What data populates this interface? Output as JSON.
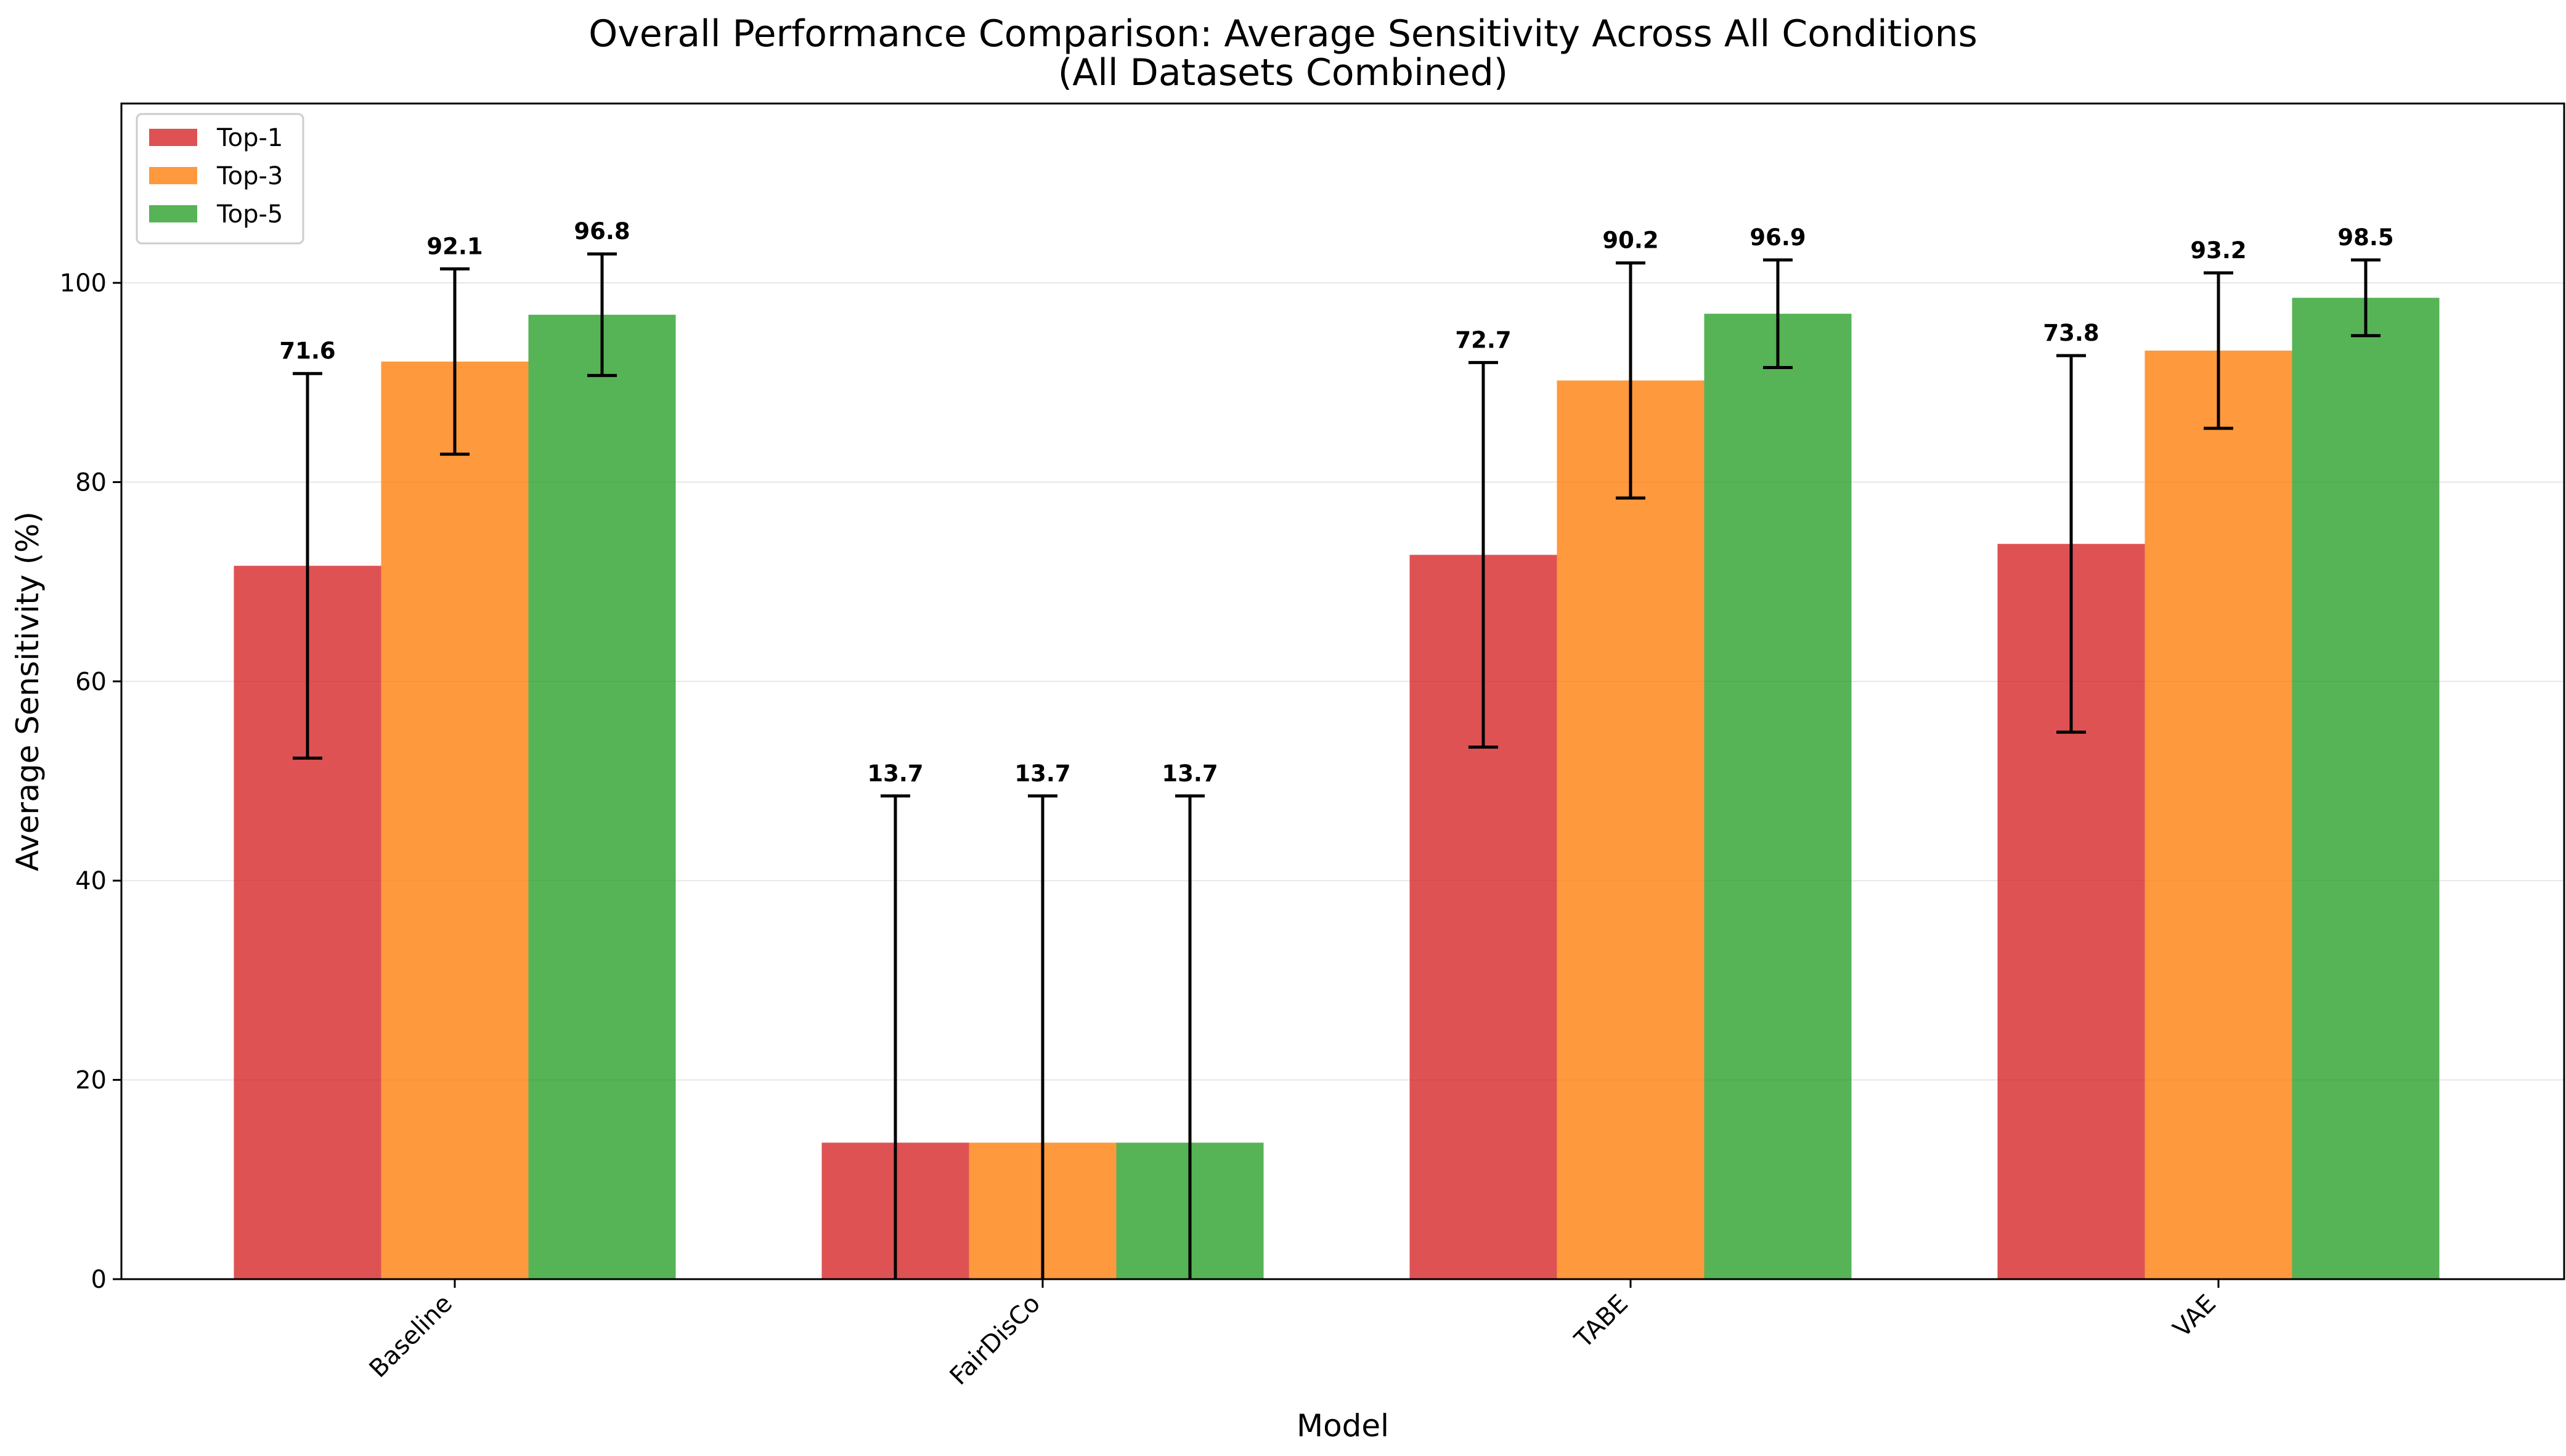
{
  "chart_data": {
    "type": "bar",
    "title": "Overall Performance Comparison: Average Sensitivity Across All Conditions",
    "subtitle": "(All Datasets Combined)",
    "xlabel": "Model",
    "ylabel": "Average Sensitivity (%)",
    "categories": [
      "Baseline",
      "FairDisCo",
      "TABE",
      "VAE"
    ],
    "ylim": [
      0,
      118
    ],
    "yticks": [
      0,
      20,
      40,
      60,
      80,
      100
    ],
    "grid": true,
    "legend_position": "top-left",
    "series": [
      {
        "name": "Top-1",
        "color": "#d62728",
        "values": [
          71.6,
          13.7,
          72.7,
          73.8
        ],
        "errors": [
          19.3,
          34.8,
          19.3,
          18.9
        ]
      },
      {
        "name": "Top-3",
        "color": "#ff7f0e",
        "values": [
          92.1,
          13.7,
          90.2,
          93.2
        ],
        "errors": [
          9.3,
          34.8,
          11.8,
          7.8
        ]
      },
      {
        "name": "Top-5",
        "color": "#2ca02c",
        "values": [
          96.8,
          13.7,
          96.9,
          98.5
        ],
        "errors": [
          6.1,
          34.8,
          5.4,
          3.8
        ]
      }
    ]
  }
}
